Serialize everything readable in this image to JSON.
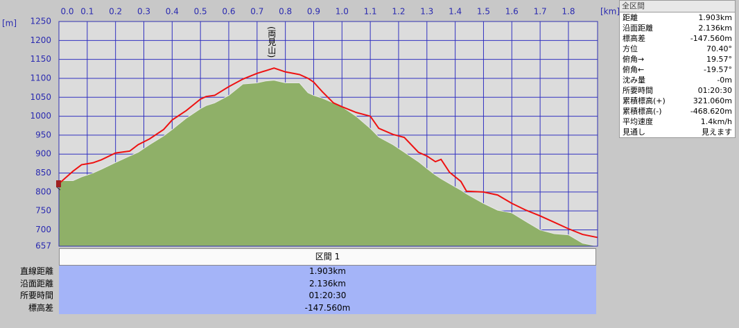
{
  "chart_data": {
    "type": "line",
    "x_label": "[km]",
    "y_label": "[m]",
    "x": [
      0,
      0.05,
      0.08,
      0.12,
      0.15,
      0.2,
      0.25,
      0.28,
      0.32,
      0.37,
      0.4,
      0.45,
      0.5,
      0.52,
      0.55,
      0.6,
      0.65,
      0.7,
      0.73,
      0.76,
      0.8,
      0.85,
      0.88,
      0.9,
      0.93,
      0.97,
      1.0,
      1.05,
      1.1,
      1.13,
      1.18,
      1.22,
      1.27,
      1.3,
      1.33,
      1.35,
      1.38,
      1.42,
      1.44,
      1.5,
      1.55,
      1.6,
      1.65,
      1.7,
      1.75,
      1.8,
      1.85,
      1.903
    ],
    "series": [
      {
        "color": "#8fb068",
        "fill": true,
        "values": [
          830,
          830,
          840,
          850,
          860,
          878,
          895,
          905,
          925,
          948,
          965,
          995,
          1020,
          1028,
          1035,
          1055,
          1085,
          1088,
          1093,
          1095,
          1088,
          1088,
          1062,
          1055,
          1048,
          1035,
          1025,
          1000,
          968,
          945,
          925,
          905,
          880,
          862,
          845,
          835,
          822,
          805,
          795,
          770,
          752,
          745,
          722,
          700,
          690,
          687,
          665,
          657
        ]
      },
      {
        "color": "#ee1111",
        "fill": false,
        "values": [
          822,
          855,
          872,
          877,
          885,
          903,
          908,
          925,
          940,
          965,
          990,
          1015,
          1045,
          1052,
          1055,
          1078,
          1098,
          1113,
          1120,
          1127,
          1117,
          1110,
          1100,
          1090,
          1065,
          1035,
          1025,
          1010,
          1000,
          968,
          952,
          944,
          905,
          895,
          880,
          886,
          852,
          828,
          802,
          800,
          792,
          770,
          752,
          737,
          720,
          703,
          688,
          680
        ]
      }
    ],
    "annotations": [
      {
        "text": "(両見山)",
        "x": 0.75
      }
    ],
    "xlim": [
      0,
      1.903
    ],
    "xticks": [
      {
        "value": 0,
        "label": "0.0"
      },
      0.1,
      0.2,
      0.3,
      0.4,
      0.5,
      0.6,
      0.7,
      0.8,
      0.9,
      {
        "value": 1,
        "label": "1.0"
      },
      1.1,
      1.2,
      1.3,
      1.4,
      1.5,
      1.6,
      1.7,
      1.8
    ],
    "ylim": [
      657,
      1250
    ],
    "yticks": [
      657,
      700,
      750,
      800,
      850,
      900,
      950,
      1000,
      1050,
      1100,
      1150,
      1200,
      1250
    ],
    "grid": true
  },
  "summary": {
    "title": "全区間",
    "rows": [
      [
        "距離",
        "1.903km"
      ],
      [
        "沿面距離",
        "2.136km"
      ],
      [
        "標高差",
        "-147.560m"
      ],
      [
        "方位",
        "70.40°"
      ],
      [
        "俯角→",
        "19.57°"
      ],
      [
        "俯角←",
        "-19.57°"
      ],
      [
        "沈み量",
        "-0m"
      ],
      [
        "所要時間",
        "01:20:30"
      ],
      [
        "累積標高(+)",
        "321.060m"
      ],
      [
        "累積標高(-)",
        "-468.620m"
      ],
      [
        "平均速度",
        "1.4km/h"
      ],
      [
        "見通し",
        "見えます"
      ]
    ]
  },
  "section_table": {
    "header": "区間 1",
    "rows": [
      [
        "直線距離",
        "1.903km"
      ],
      [
        "沿面距離",
        "2.136km"
      ],
      [
        "所要時間",
        "01:20:30"
      ],
      [
        "標高差",
        "-147.560m"
      ]
    ]
  }
}
